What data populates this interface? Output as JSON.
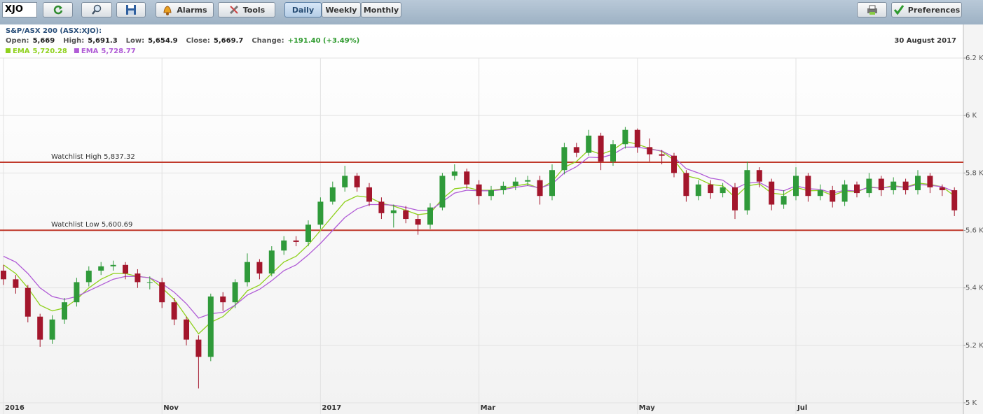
{
  "toolbar": {
    "symbol": "XJO",
    "buttons": [
      "Alarms",
      "Tools"
    ],
    "periods": [
      "Daily",
      "Weekly",
      "Monthly"
    ],
    "preferences": "Preferences"
  },
  "chart_data": {
    "type": "candlestick",
    "title": "S&P/ASX 200 (ASX:XJO):",
    "quote": [
      {
        "label": "Open:",
        "value": "5,669"
      },
      {
        "label": "High:",
        "value": "5,691.3"
      },
      {
        "label": "Low:",
        "value": "5,654.9"
      },
      {
        "label": "Close:",
        "value": "5,669.7"
      },
      {
        "label": "Change:",
        "value": "+191.40 (+3.49%)"
      }
    ],
    "date": "30 August 2017",
    "up_color": "#2f9a3a",
    "down_color": "#a3162c",
    "open": [
      5460,
      5430,
      5400,
      5300,
      5220,
      5290,
      5350,
      5420,
      5460,
      5475,
      5480,
      5450,
      5420,
      5420,
      5350,
      5290,
      5220,
      5160,
      5370,
      5350,
      5420,
      5490,
      5450,
      5530,
      5565,
      5560,
      5620,
      5700,
      5750,
      5790,
      5750,
      5700,
      5660,
      5670,
      5640,
      5620,
      5680,
      5790,
      5805,
      5760,
      5720,
      5740,
      5755,
      5770,
      5775,
      5720,
      5810,
      5890,
      5870,
      5930,
      5840,
      5900,
      5950,
      5890,
      5865,
      5860,
      5800,
      5720,
      5760,
      5730,
      5750,
      5670,
      5810,
      5770,
      5690,
      5720,
      5790,
      5720,
      5740,
      5700,
      5760,
      5730,
      5780,
      5740,
      5770,
      5740,
      5790,
      5750,
      5740
    ],
    "high": [
      5480,
      5445,
      5410,
      5310,
      5305,
      5365,
      5435,
      5475,
      5490,
      5495,
      5490,
      5465,
      5440,
      5435,
      5365,
      5300,
      5235,
      5380,
      5385,
      5430,
      5520,
      5500,
      5545,
      5580,
      5580,
      5635,
      5715,
      5770,
      5825,
      5800,
      5765,
      5715,
      5690,
      5685,
      5655,
      5695,
      5800,
      5830,
      5815,
      5775,
      5755,
      5770,
      5785,
      5790,
      5790,
      5830,
      5905,
      5905,
      5950,
      5940,
      5915,
      5960,
      5955,
      5920,
      5880,
      5870,
      5810,
      5775,
      5775,
      5765,
      5765,
      5840,
      5820,
      5780,
      5740,
      5820,
      5800,
      5760,
      5755,
      5775,
      5770,
      5800,
      5790,
      5785,
      5780,
      5810,
      5800,
      5760,
      5750
    ],
    "low": [
      5410,
      5380,
      5280,
      5195,
      5205,
      5275,
      5335,
      5405,
      5445,
      5460,
      5430,
      5400,
      5395,
      5330,
      5270,
      5200,
      5050,
      5145,
      5320,
      5330,
      5405,
      5430,
      5440,
      5515,
      5545,
      5545,
      5605,
      5690,
      5735,
      5735,
      5685,
      5640,
      5610,
      5625,
      5585,
      5605,
      5670,
      5775,
      5745,
      5690,
      5705,
      5725,
      5740,
      5755,
      5690,
      5705,
      5795,
      5855,
      5860,
      5810,
      5825,
      5885,
      5870,
      5840,
      5830,
      5785,
      5700,
      5705,
      5710,
      5715,
      5640,
      5655,
      5750,
      5670,
      5675,
      5705,
      5700,
      5705,
      5680,
      5685,
      5715,
      5715,
      5720,
      5725,
      5725,
      5725,
      5730,
      5720,
      5650
    ],
    "close": [
      5430,
      5400,
      5300,
      5220,
      5290,
      5350,
      5420,
      5460,
      5475,
      5480,
      5450,
      5420,
      5420,
      5350,
      5290,
      5220,
      5160,
      5370,
      5350,
      5420,
      5490,
      5450,
      5530,
      5565,
      5560,
      5620,
      5700,
      5750,
      5790,
      5750,
      5700,
      5660,
      5670,
      5640,
      5620,
      5680,
      5790,
      5805,
      5760,
      5720,
      5740,
      5755,
      5770,
      5775,
      5720,
      5810,
      5890,
      5870,
      5930,
      5840,
      5900,
      5950,
      5890,
      5865,
      5860,
      5800,
      5720,
      5760,
      5730,
      5750,
      5670,
      5810,
      5770,
      5690,
      5720,
      5790,
      5720,
      5740,
      5700,
      5760,
      5730,
      5780,
      5740,
      5770,
      5740,
      5790,
      5750,
      5740,
      5670
    ],
    "series": [
      {
        "name": "EMA",
        "value_label": "5,720.28",
        "color": "#8fd11c",
        "values": [
          5480,
          5450,
          5400,
          5340,
          5320,
          5330,
          5360,
          5400,
          5430,
          5450,
          5450,
          5440,
          5435,
          5400,
          5360,
          5300,
          5240,
          5280,
          5300,
          5340,
          5390,
          5410,
          5450,
          5490,
          5510,
          5550,
          5600,
          5650,
          5700,
          5720,
          5715,
          5695,
          5685,
          5670,
          5655,
          5660,
          5710,
          5745,
          5750,
          5740,
          5740,
          5745,
          5755,
          5762,
          5745,
          5770,
          5820,
          5840,
          5880,
          5865,
          5880,
          5910,
          5900,
          5885,
          5875,
          5845,
          5790,
          5780,
          5760,
          5755,
          5715,
          5755,
          5762,
          5730,
          5725,
          5750,
          5738,
          5739,
          5722,
          5737,
          5734,
          5752,
          5747,
          5756,
          5750,
          5765,
          5760,
          5752,
          5720
        ]
      },
      {
        "name": "EMA",
        "value_label": "5,728.77",
        "color": "#b05bd6",
        "values": [
          5510,
          5490,
          5450,
          5400,
          5370,
          5360,
          5370,
          5390,
          5410,
          5430,
          5440,
          5440,
          5435,
          5415,
          5385,
          5345,
          5295,
          5310,
          5315,
          5340,
          5375,
          5395,
          5425,
          5460,
          5480,
          5515,
          5555,
          5600,
          5645,
          5675,
          5690,
          5690,
          5688,
          5680,
          5670,
          5670,
          5700,
          5730,
          5740,
          5738,
          5738,
          5742,
          5750,
          5756,
          5748,
          5762,
          5800,
          5822,
          5855,
          5853,
          5865,
          5890,
          5890,
          5883,
          5877,
          5855,
          5815,
          5800,
          5782,
          5775,
          5745,
          5765,
          5767,
          5745,
          5738,
          5755,
          5745,
          5743,
          5730,
          5740,
          5737,
          5750,
          5747,
          5753,
          5750,
          5760,
          5757,
          5752,
          5735
        ]
      }
    ],
    "annotations": [
      {
        "label": "Watchlist High 5,837.32",
        "value": 5837.32,
        "color": "#c0392b"
      },
      {
        "label": "Watchlist Low 5,600.69",
        "value": 5600.69,
        "color": "#c0392b"
      }
    ],
    "ylim": [
      5000,
      6200
    ],
    "yticks": [
      {
        "value": 5000,
        "label": "5 K"
      },
      {
        "value": 5200,
        "label": "5.2 K"
      },
      {
        "value": 5400,
        "label": "5.4 K"
      },
      {
        "value": 5600,
        "label": "5.6 K"
      },
      {
        "value": 5800,
        "label": "5.8 K"
      },
      {
        "value": 6000,
        "label": "6 K"
      },
      {
        "value": 6200,
        "label": "6.2 K"
      }
    ],
    "xticks": [
      {
        "value": 0,
        "label": "2016"
      },
      {
        "value": 13,
        "label": "Nov"
      },
      {
        "value": 26,
        "label": "2017"
      },
      {
        "value": 39,
        "label": "Mar"
      },
      {
        "value": 52,
        "label": "May"
      },
      {
        "value": 65,
        "label": "Jul"
      }
    ],
    "grid": true
  }
}
